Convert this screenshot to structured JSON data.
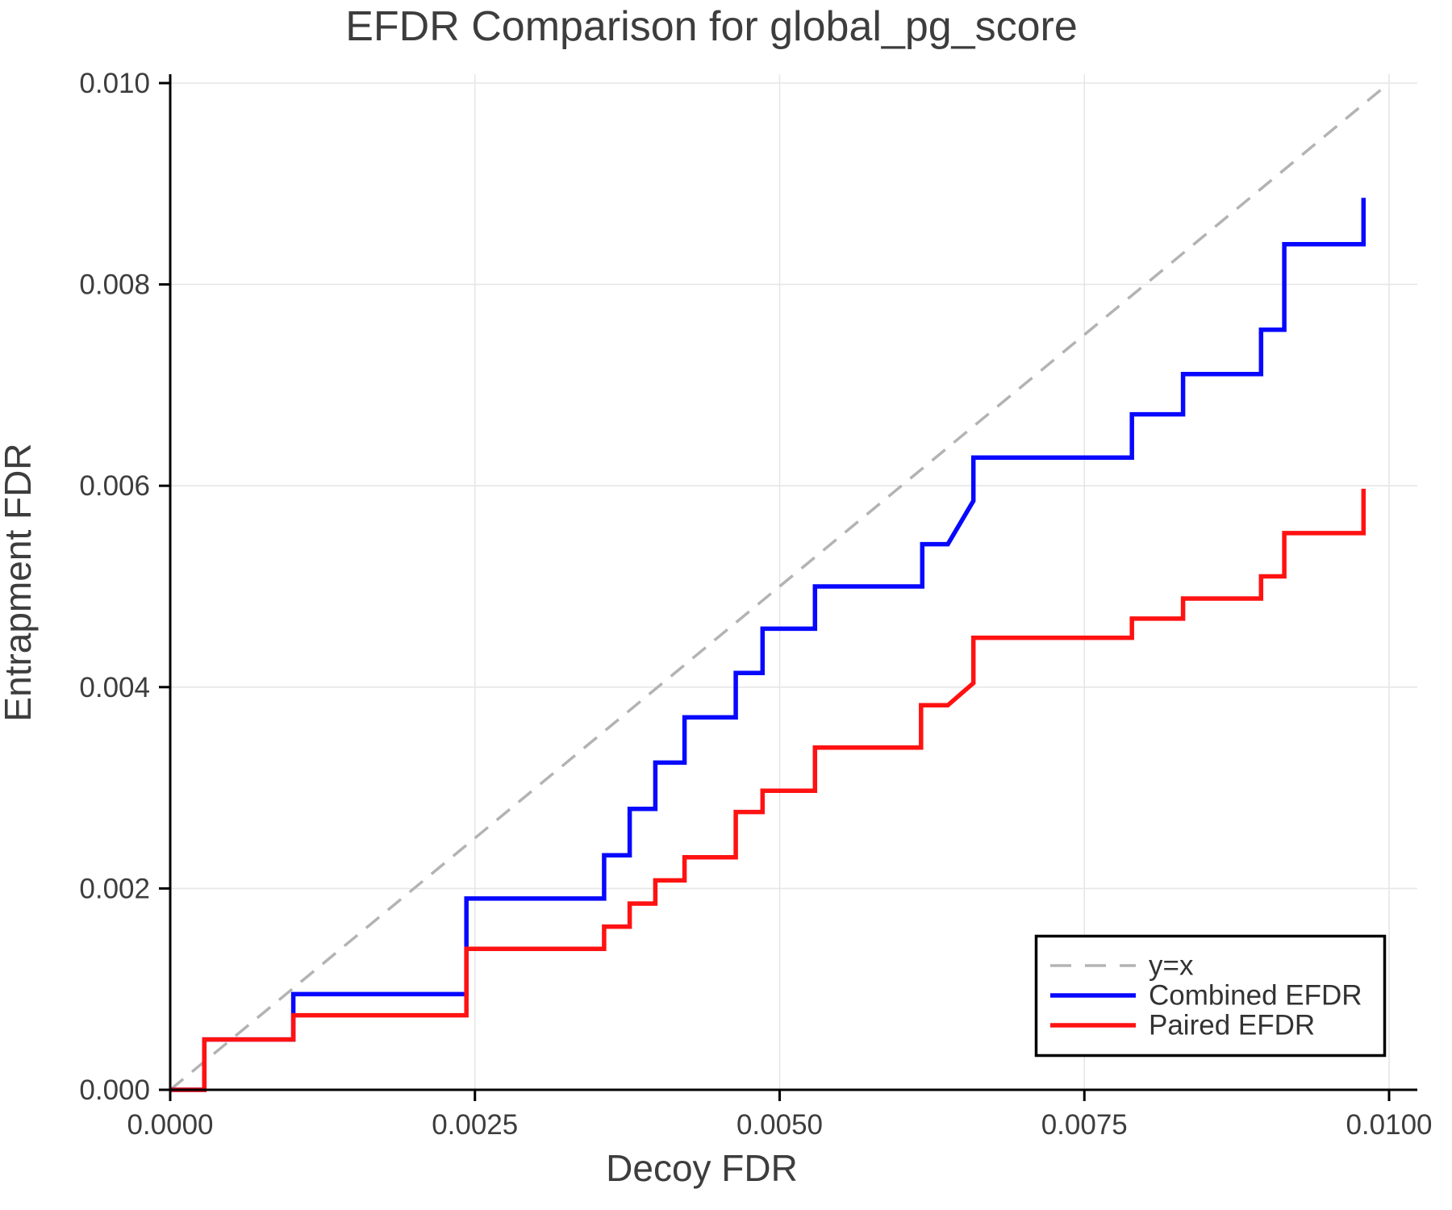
{
  "chart_data": {
    "type": "line",
    "title": "EFDR Comparison for global_pg_score",
    "xlabel": "Decoy FDR",
    "ylabel": "Entrapment FDR",
    "xlim": [
      0,
      0.01023
    ],
    "ylim": [
      0,
      0.01006
    ],
    "grid": true,
    "legend_position": "lower-right-inset",
    "x_ticks": {
      "values": [
        0,
        0.0025,
        0.005,
        0.0075,
        0.01
      ],
      "labels": [
        "0.0000",
        "0.0025",
        "0.0050",
        "0.0075",
        "0.0100"
      ]
    },
    "y_ticks": {
      "values": [
        0,
        0.002,
        0.004,
        0.006,
        0.008,
        0.01
      ],
      "labels": [
        "0.000",
        "0.002",
        "0.004",
        "0.006",
        "0.008",
        "0.010"
      ]
    },
    "series": [
      {
        "name": "y=x",
        "kind": "identity-line",
        "style": "dashed",
        "color": "#b3b3b3",
        "points": [
          [
            0,
            0
          ],
          [
            0.00995,
            0.00995
          ]
        ]
      },
      {
        "name": "Combined EFDR",
        "kind": "step-curve",
        "style": "solid",
        "color": "#0808ff",
        "points": [
          [
            0,
            0
          ],
          [
            0.00028,
            0
          ],
          [
            0.00028,
            0.0005
          ],
          [
            0.00101,
            0.0005
          ],
          [
            0.00101,
            0.00095
          ],
          [
            0.00243,
            0.00095
          ],
          [
            0.00243,
            0.0019
          ],
          [
            0.00356,
            0.0019
          ],
          [
            0.00356,
            0.00233
          ],
          [
            0.00377,
            0.00233
          ],
          [
            0.00377,
            0.00279
          ],
          [
            0.00398,
            0.00279
          ],
          [
            0.00398,
            0.00325
          ],
          [
            0.00422,
            0.00325
          ],
          [
            0.00422,
            0.0037
          ],
          [
            0.00464,
            0.0037
          ],
          [
            0.00464,
            0.00414
          ],
          [
            0.00486,
            0.00414
          ],
          [
            0.00486,
            0.00458
          ],
          [
            0.00529,
            0.00458
          ],
          [
            0.00529,
            0.005
          ],
          [
            0.00617,
            0.005
          ],
          [
            0.00617,
            0.00542
          ],
          [
            0.00638,
            0.00542
          ],
          [
            0.00659,
            0.00585
          ],
          [
            0.00659,
            0.00628
          ],
          [
            0.00789,
            0.00628
          ],
          [
            0.00789,
            0.00671
          ],
          [
            0.00831,
            0.00671
          ],
          [
            0.00831,
            0.00711
          ],
          [
            0.00895,
            0.00711
          ],
          [
            0.00895,
            0.00755
          ],
          [
            0.00914,
            0.00755
          ],
          [
            0.00914,
            0.0084
          ],
          [
            0.00979,
            0.0084
          ],
          [
            0.00979,
            0.00886
          ]
        ]
      },
      {
        "name": "Paired EFDR",
        "kind": "step-curve",
        "style": "solid",
        "color": "#ff1212",
        "points": [
          [
            0,
            0
          ],
          [
            0.00028,
            0
          ],
          [
            0.00028,
            0.0005
          ],
          [
            0.00101,
            0.0005
          ],
          [
            0.00101,
            0.00074
          ],
          [
            0.00243,
            0.00074
          ],
          [
            0.00243,
            0.0014
          ],
          [
            0.00356,
            0.0014
          ],
          [
            0.00356,
            0.00162
          ],
          [
            0.00377,
            0.00162
          ],
          [
            0.00377,
            0.00185
          ],
          [
            0.00398,
            0.00185
          ],
          [
            0.00398,
            0.00208
          ],
          [
            0.00422,
            0.00208
          ],
          [
            0.00422,
            0.00231
          ],
          [
            0.00464,
            0.00231
          ],
          [
            0.00464,
            0.00276
          ],
          [
            0.00486,
            0.00276
          ],
          [
            0.00486,
            0.00297
          ],
          [
            0.00529,
            0.00297
          ],
          [
            0.00529,
            0.0034
          ],
          [
            0.00616,
            0.0034
          ],
          [
            0.00616,
            0.00382
          ],
          [
            0.00638,
            0.00382
          ],
          [
            0.00659,
            0.00404
          ],
          [
            0.00659,
            0.00449
          ],
          [
            0.00789,
            0.00449
          ],
          [
            0.00789,
            0.00468
          ],
          [
            0.00831,
            0.00468
          ],
          [
            0.00831,
            0.00488
          ],
          [
            0.00895,
            0.00488
          ],
          [
            0.00895,
            0.0051
          ],
          [
            0.00914,
            0.0051
          ],
          [
            0.00914,
            0.00553
          ],
          [
            0.00979,
            0.00553
          ],
          [
            0.00979,
            0.00597
          ]
        ]
      }
    ]
  },
  "styles": {
    "background": "#ffffff",
    "grid_color": "#e6e6e6",
    "axis_color": "#000000",
    "text_color": "#3d3d3d",
    "legend_bg": "#ffffff",
    "legend_border": "#000000"
  }
}
